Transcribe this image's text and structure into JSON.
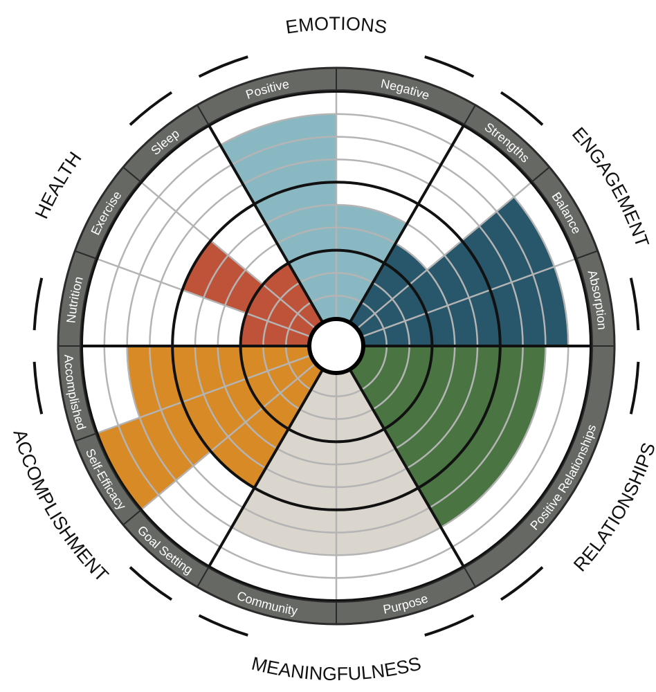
{
  "chart_data": {
    "type": "polar-bar",
    "scale_max": 10,
    "categories": [
      {
        "name": "EMOTIONS",
        "color": "#8ab8c2",
        "subcategories": [
          {
            "label": "Positive",
            "value": 9
          },
          {
            "label": "Negative",
            "value": 5
          }
        ]
      },
      {
        "name": "ENGAGEMENT",
        "color": "#28566a",
        "subcategories": [
          {
            "label": "Strengths",
            "value": 4
          },
          {
            "label": "Balance",
            "value": 9
          },
          {
            "label": "Absorption",
            "value": 9
          }
        ]
      },
      {
        "name": "RELATIONSHIPS",
        "color": "#4a7542",
        "subcategories": [
          {
            "label": "Positive Relationships",
            "value": 8
          }
        ]
      },
      {
        "name": "MEANINGFULNESS",
        "color": "#dad5cd",
        "subcategories": [
          {
            "label": "Purpose",
            "value": 8
          },
          {
            "label": "Community",
            "value": 8
          }
        ]
      },
      {
        "name": "ACCOMPLISHMENT",
        "color": "#d88a26",
        "subcategories": [
          {
            "label": "Goal Setting",
            "value": 6
          },
          {
            "label": "Self-Efficacy",
            "value": 10
          },
          {
            "label": "Accomplished",
            "value": 8
          }
        ]
      },
      {
        "name": "HEALTH",
        "color": "#bf5339",
        "subcategories": [
          {
            "label": "Nutrition",
            "value": 3
          },
          {
            "label": "Exercise",
            "value": 6
          },
          {
            "label": "Sleep",
            "value": 3
          }
        ]
      }
    ]
  }
}
